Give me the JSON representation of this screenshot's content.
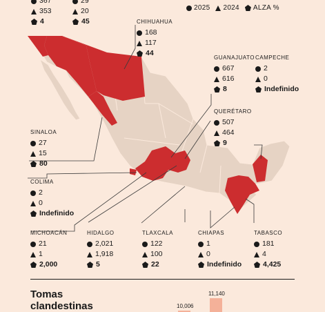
{
  "legend": [
    {
      "icon": "circle",
      "label": "2025"
    },
    {
      "icon": "triangle",
      "label": "2024"
    },
    {
      "icon": "pentagon",
      "label": "ALZA %"
    }
  ],
  "states": {
    "top_left": {
      "name": "",
      "v2025": "367",
      "v2024": "353",
      "alza": "4"
    },
    "top_mid": {
      "name": "",
      "v2025": "29",
      "v2024": "20",
      "alza": "45"
    },
    "chihuahua": {
      "name": "CHIHUAHUA",
      "v2025": "168",
      "v2024": "117",
      "alza": "44"
    },
    "guanajuato": {
      "name": "GUANAJUATO",
      "v2025": "667",
      "v2024": "616",
      "alza": "8"
    },
    "campeche": {
      "name": "CAMPECHE",
      "v2025": "2",
      "v2024": "0",
      "alza": "Indefinido"
    },
    "queretaro": {
      "name": "QUERÉTARO",
      "v2025": "507",
      "v2024": "464",
      "alza": "9"
    },
    "sinaloa": {
      "name": "SINALOA",
      "v2025": "27",
      "v2024": "15",
      "alza": "80"
    },
    "colima": {
      "name": "COLIMA",
      "v2025": "2",
      "v2024": "0",
      "alza": "Indefinido"
    },
    "michoacan": {
      "name": "MICHOACÁN",
      "v2025": "21",
      "v2024": "1",
      "alza": "2,000"
    },
    "hidalgo": {
      "name": "HIDALGO",
      "v2025": "2,021",
      "v2024": "1,918",
      "alza": "5"
    },
    "tlaxcala": {
      "name": "TLAXCALA",
      "v2025": "122",
      "v2024": "100",
      "alza": "22"
    },
    "chiapas": {
      "name": "CHIAPAS",
      "v2025": "1",
      "v2024": "0",
      "alza": "Indefinido"
    },
    "tabasco": {
      "name": "TABASCO",
      "v2025": "181",
      "v2024": "4",
      "alza": "4,425"
    }
  },
  "bottom": {
    "title_line1": "Tomas",
    "title_line2": "clandestinas",
    "bar_values": [
      {
        "value": 10006,
        "label": "10,006"
      },
      {
        "value": 11140,
        "label": "11,140"
      }
    ]
  },
  "colors": {
    "highlight": "#cc2d2f",
    "land": "#e6d3c4",
    "background": "#fbe9dc",
    "bar": "#f4b199"
  }
}
